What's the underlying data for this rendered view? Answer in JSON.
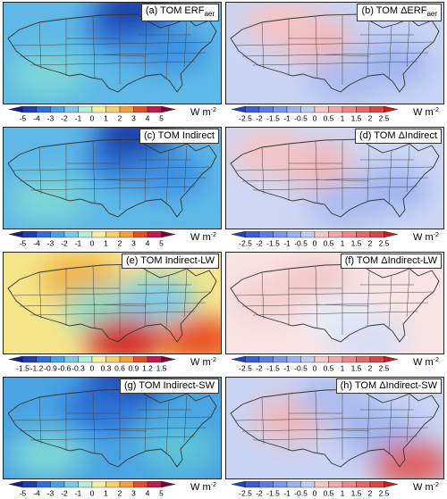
{
  "panels": [
    {
      "id": "a",
      "label_main": "(a) TOM ERF",
      "label_sub": "aer",
      "palette": "bluered",
      "base": "#5fb8e6",
      "patches": [
        [
          "#2a6fd6",
          0.55,
          0.25
        ],
        [
          "#1c3ea8",
          0.6,
          0.05
        ],
        [
          "#7ed7d7",
          0.2,
          0.7
        ],
        [
          "#3e8fe0",
          0.75,
          0.45
        ]
      ],
      "ticks": [
        "-5",
        "-4",
        "-3",
        "-2",
        "-1",
        "0",
        "1",
        "2",
        "3",
        "4",
        "5"
      ],
      "unit": "W m",
      "unit_exp": "-2"
    },
    {
      "id": "b",
      "label_main": "(b) TOM ΔERF",
      "label_sub": "aer",
      "palette": "diverge",
      "base": "#c9d4f4",
      "patches": [
        [
          "#f2b8b8",
          0.4,
          0.35
        ],
        [
          "#9fb3ee",
          0.75,
          0.6
        ],
        [
          "#f5c4c4",
          0.25,
          0.2
        ],
        [
          "#aabcee",
          0.55,
          0.75
        ]
      ],
      "ticks": [
        "-2.5",
        "-2",
        "-1.5",
        "-1",
        "-0.5",
        "0",
        "0.5",
        "1",
        "1.5",
        "2",
        "2.5"
      ],
      "unit": "W m",
      "unit_exp": "-2"
    },
    {
      "id": "c",
      "label_main": "(c) TOM Indirect",
      "label_sub": "",
      "palette": "bluered",
      "base": "#5fb8e6",
      "patches": [
        [
          "#2a6fd6",
          0.55,
          0.3
        ],
        [
          "#1c3ea8",
          0.6,
          0.05
        ],
        [
          "#7ed7d7",
          0.2,
          0.7
        ],
        [
          "#3e8fe0",
          0.75,
          0.45
        ]
      ],
      "ticks": [
        "-5",
        "-4",
        "-3",
        "-2",
        "-1",
        "0",
        "1",
        "2",
        "3",
        "4",
        "5"
      ],
      "unit": "W m",
      "unit_exp": "-2"
    },
    {
      "id": "d",
      "label_main": "(d) TOM ΔIndirect",
      "label_sub": "",
      "palette": "diverge",
      "base": "#cdd7f4",
      "patches": [
        [
          "#f2b8b8",
          0.4,
          0.35
        ],
        [
          "#9fb3ee",
          0.75,
          0.6
        ],
        [
          "#f5c4c4",
          0.2,
          0.25
        ],
        [
          "#aabcee",
          0.55,
          0.75
        ]
      ],
      "ticks": [
        "-2.5",
        "-2",
        "-1.5",
        "-1",
        "-0.5",
        "0",
        "0.5",
        "1",
        "1.5",
        "2",
        "2.5"
      ],
      "unit": "W m",
      "unit_exp": "-2"
    },
    {
      "id": "e",
      "label_main": "(e) TOM Indirect-LW",
      "label_sub": "",
      "palette": "bluered",
      "base": "#f5e58a",
      "patches": [
        [
          "#f0b040",
          0.35,
          0.25
        ],
        [
          "#8fdcc8",
          0.45,
          0.55
        ],
        [
          "#d22222",
          0.55,
          0.85
        ],
        [
          "#e85020",
          0.9,
          0.85
        ],
        [
          "#7ccae6",
          0.7,
          0.45
        ]
      ],
      "ticks": [
        "-1.5",
        "-1.2",
        "-0.9",
        "-0.6",
        "-0.3",
        "0",
        "0.3",
        "0.6",
        "0.9",
        "1.2",
        "1.5"
      ],
      "unit": "W m",
      "unit_exp": "-2"
    },
    {
      "id": "f",
      "label_main": "(f) TOM ΔIndirect-LW",
      "label_sub": "",
      "palette": "diverge",
      "base": "#f8e4e4",
      "patches": [
        [
          "#f2c4c4",
          0.4,
          0.3
        ],
        [
          "#e9ecf8",
          0.5,
          0.6
        ],
        [
          "#d8def6",
          0.65,
          0.85
        ],
        [
          "#f5d0d0",
          0.2,
          0.45
        ]
      ],
      "ticks": [
        "-2.5",
        "-2",
        "-1.5",
        "-1",
        "-0.5",
        "0",
        "0.5",
        "1",
        "1.5",
        "2",
        "2.5"
      ],
      "unit": "W m",
      "unit_exp": "-2"
    },
    {
      "id": "g",
      "label_main": "(g) TOM Indirect-SW",
      "label_sub": "",
      "palette": "bluered",
      "base": "#4aa4e2",
      "patches": [
        [
          "#1c3ea8",
          0.55,
          0.05
        ],
        [
          "#2a6fd6",
          0.45,
          0.3
        ],
        [
          "#7ed7d7",
          0.2,
          0.75
        ],
        [
          "#5fc4d8",
          0.8,
          0.7
        ]
      ],
      "ticks": [
        "-5",
        "-4",
        "-3",
        "-2",
        "-1",
        "0",
        "1",
        "2",
        "3",
        "4",
        "5"
      ],
      "unit": "W m",
      "unit_exp": "-2"
    },
    {
      "id": "h",
      "label_main": "(h) TOM ΔIndirect-SW",
      "label_sub": "",
      "palette": "diverge",
      "base": "#c9d4f4",
      "patches": [
        [
          "#f2b8b8",
          0.3,
          0.4
        ],
        [
          "#9fb3ee",
          0.7,
          0.55
        ],
        [
          "#e06060",
          0.85,
          0.85
        ],
        [
          "#aabcee",
          0.5,
          0.2
        ]
      ],
      "ticks": [
        "-2.5",
        "-2",
        "-1.5",
        "-1",
        "-0.5",
        "0",
        "0.5",
        "1",
        "1.5",
        "2",
        "2.5"
      ],
      "unit": "W m",
      "unit_exp": "-2"
    }
  ],
  "palettes": {
    "bluered": [
      "#1a1a80",
      "#1f3fb0",
      "#2f6fd8",
      "#4aa0e8",
      "#7ccae6",
      "#b8ecd8",
      "#f5f0a0",
      "#f5d070",
      "#f0a040",
      "#e05030",
      "#c01a50",
      "#800040"
    ],
    "diverge": [
      "#2040c0",
      "#3a5ed0",
      "#5a7ce0",
      "#7a98ea",
      "#9ab2f0",
      "#bccaf4",
      "#f4c8c8",
      "#f0a8a8",
      "#ea8888",
      "#e06868",
      "#d44848",
      "#c02020"
    ]
  }
}
